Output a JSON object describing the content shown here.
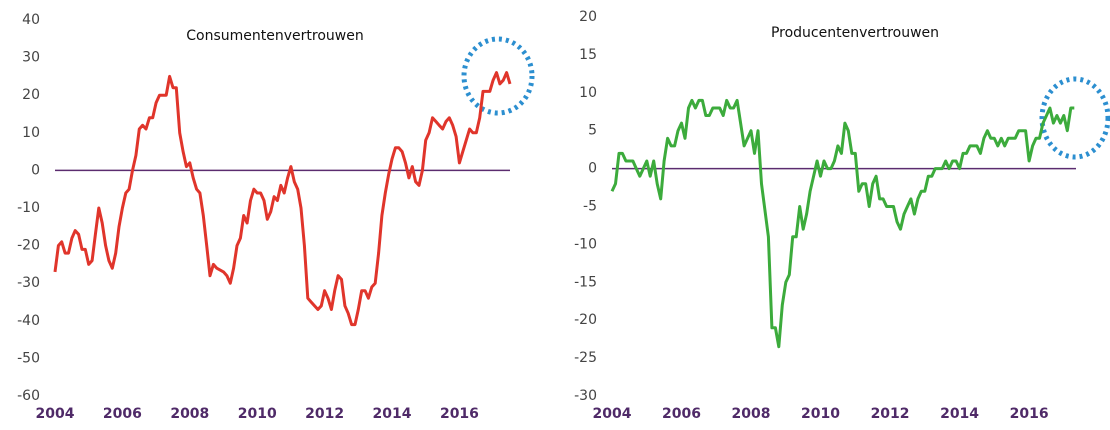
{
  "chart_data": [
    {
      "type": "line",
      "title": "Consumentenvertrouwen",
      "x": [
        2004.0,
        2004.1,
        2004.2,
        2004.3,
        2004.4,
        2004.5,
        2004.6,
        2004.7,
        2004.8,
        2004.9,
        2005.0,
        2005.1,
        2005.2,
        2005.3,
        2005.4,
        2005.5,
        2005.6,
        2005.7,
        2005.8,
        2005.9,
        2006.0,
        2006.1,
        2006.2,
        2006.3,
        2006.4,
        2006.5,
        2006.6,
        2006.7,
        2006.8,
        2006.9,
        2007.0,
        2007.1,
        2007.3,
        2007.4,
        2007.5,
        2007.6,
        2007.7,
        2007.8,
        2007.9,
        2008.0,
        2008.1,
        2008.2,
        2008.3,
        2008.4,
        2008.5,
        2008.6,
        2008.7,
        2008.8,
        2009.0,
        2009.1,
        2009.2,
        2009.3,
        2009.4,
        2009.5,
        2009.6,
        2009.7,
        2009.8,
        2009.9,
        2010.0,
        2010.1,
        2010.2,
        2010.3,
        2010.4,
        2010.5,
        2010.6,
        2010.7,
        2010.8,
        2010.9,
        2011.0,
        2011.1,
        2011.2,
        2011.3,
        2011.4,
        2011.5,
        2011.6,
        2011.7,
        2011.8,
        2011.9,
        2012.0,
        2012.1,
        2012.2,
        2012.3,
        2012.4,
        2012.5,
        2012.6,
        2012.7,
        2012.8,
        2012.9,
        2013.0,
        2013.1,
        2013.2,
        2013.3,
        2013.4,
        2013.5,
        2013.6,
        2013.7,
        2013.8,
        2013.9,
        2014.0,
        2014.1,
        2014.2,
        2014.3,
        2014.4,
        2014.5,
        2014.6,
        2014.7,
        2014.8,
        2014.9,
        2015.0,
        2015.1,
        2015.2,
        2015.3,
        2015.4,
        2015.5,
        2015.6,
        2015.7,
        2015.8,
        2015.9,
        2016.0,
        2016.1,
        2016.2,
        2016.3,
        2016.4,
        2016.5,
        2016.6,
        2016.7,
        2016.8,
        2016.9,
        2017.0,
        2017.1,
        2017.2,
        2017.3,
        2017.4,
        2017.5
      ],
      "series": [
        {
          "color": "#e0352b",
          "values": [
            -27,
            -20,
            -19,
            -22,
            -22,
            -18,
            -16,
            -17,
            -21,
            -21,
            -25,
            -24,
            -17,
            -10,
            -14,
            -20,
            -24,
            -26,
            -22,
            -15,
            -10,
            -6,
            -5,
            0,
            4,
            11,
            12,
            11,
            14,
            14,
            18,
            20,
            20,
            25,
            22,
            22,
            10,
            5,
            1,
            2,
            -2,
            -5,
            -6,
            -12,
            -20,
            -28,
            -25,
            -26,
            -27,
            -28,
            -30,
            -26,
            -20,
            -18,
            -12,
            -14,
            -8,
            -5,
            -6,
            -6,
            -8,
            -13,
            -11,
            -7,
            -8,
            -4,
            -6,
            -2,
            1,
            -3,
            -5,
            -10,
            -20,
            -34,
            -35,
            -36,
            -37,
            -36,
            -32,
            -34,
            -37,
            -32,
            -28,
            -29,
            -36,
            -38,
            -41,
            -41,
            -37,
            -32,
            -32,
            -34,
            -31,
            -30,
            -22,
            -12,
            -6,
            -1,
            3,
            6,
            6,
            5,
            2,
            -2,
            1,
            -3,
            -4,
            0,
            8,
            10,
            14,
            13,
            12,
            11,
            13,
            14,
            12,
            9,
            2,
            5,
            8,
            11,
            10,
            10,
            14,
            21,
            21,
            21,
            24,
            26,
            23,
            24,
            26,
            23
          ]
        }
      ],
      "xlim": [
        2004,
        2017.5
      ],
      "xticks": [
        2004,
        2006,
        2008,
        2010,
        2012,
        2014,
        2016
      ],
      "ylim": [
        -60,
        40
      ],
      "yticks": [
        -60,
        -50,
        -40,
        -30,
        -20,
        -10,
        0,
        10,
        20,
        30,
        40
      ]
    },
    {
      "type": "line",
      "title": "Producentenvertrouwen",
      "x": [
        2004.0,
        2004.1,
        2004.2,
        2004.3,
        2004.4,
        2004.5,
        2004.6,
        2004.7,
        2004.8,
        2004.9,
        2005.0,
        2005.1,
        2005.2,
        2005.3,
        2005.4,
        2005.5,
        2005.6,
        2005.7,
        2005.8,
        2005.9,
        2006.0,
        2006.1,
        2006.2,
        2006.3,
        2006.4,
        2006.5,
        2006.6,
        2006.7,
        2006.8,
        2006.9,
        2007.0,
        2007.1,
        2007.2,
        2007.3,
        2007.4,
        2007.5,
        2007.6,
        2007.7,
        2007.8,
        2007.9,
        2008.0,
        2008.1,
        2008.2,
        2008.3,
        2008.5,
        2008.6,
        2008.7,
        2008.8,
        2008.9,
        2009.0,
        2009.1,
        2009.2,
        2009.3,
        2009.4,
        2009.5,
        2009.6,
        2009.7,
        2009.8,
        2009.9,
        2010.0,
        2010.1,
        2010.2,
        2010.3,
        2010.4,
        2010.5,
        2010.6,
        2010.7,
        2010.8,
        2010.9,
        2011.0,
        2011.1,
        2011.2,
        2011.3,
        2011.4,
        2011.5,
        2011.6,
        2011.7,
        2011.8,
        2011.9,
        2012.0,
        2012.1,
        2012.2,
        2012.3,
        2012.4,
        2012.5,
        2012.6,
        2012.7,
        2012.8,
        2012.9,
        2013.0,
        2013.1,
        2013.2,
        2013.3,
        2013.4,
        2013.5,
        2013.6,
        2013.7,
        2013.8,
        2013.9,
        2014.0,
        2014.1,
        2014.2,
        2014.3,
        2014.4,
        2014.5,
        2014.6,
        2014.7,
        2014.8,
        2014.9,
        2015.0,
        2015.1,
        2015.2,
        2015.3,
        2015.4,
        2015.5,
        2015.6,
        2015.7,
        2015.8,
        2015.9,
        2016.0,
        2016.1,
        2016.2,
        2016.3,
        2016.4,
        2016.5,
        2016.6,
        2016.7,
        2016.8,
        2016.9,
        2017.0,
        2017.1,
        2017.2,
        2017.3
      ],
      "series": [
        {
          "color": "#3cab3c",
          "values": [
            -3,
            -2,
            2,
            2,
            1,
            1,
            1,
            0,
            -1,
            0,
            1,
            -1,
            1,
            -2,
            -4,
            1,
            4,
            3,
            3,
            5,
            6,
            4,
            8,
            9,
            8,
            9,
            9,
            7,
            7,
            8,
            8,
            8,
            7,
            9,
            8,
            8,
            9,
            6,
            3,
            4,
            5,
            2,
            5,
            -2,
            -9,
            -21,
            -21,
            -23.5,
            -18,
            -15,
            -14,
            -9,
            -9,
            -5,
            -8,
            -6,
            -3,
            -1,
            1,
            -1,
            1,
            0,
            0,
            1,
            3,
            2,
            6,
            5,
            2,
            2,
            -3,
            -2,
            -2,
            -5,
            -2,
            -1,
            -4,
            -4,
            -5,
            -5,
            -5,
            -7,
            -8,
            -6,
            -5,
            -4,
            -6,
            -4,
            -3,
            -3,
            -1,
            -1,
            0,
            0,
            0,
            1,
            0,
            1,
            1,
            0,
            2,
            2,
            3,
            3,
            3,
            2,
            4,
            5,
            4,
            4,
            3,
            4,
            3,
            4,
            4,
            4,
            5,
            5,
            5,
            1,
            3,
            4,
            4,
            6,
            7,
            8,
            6,
            7,
            6,
            7,
            5,
            8,
            8
          ]
        }
      ],
      "xlim": [
        2004,
        2017.35
      ],
      "xticks": [
        2004,
        2006,
        2008,
        2010,
        2012,
        2014,
        2016
      ],
      "ylim": [
        -30,
        20
      ],
      "yticks": [
        -30,
        -25,
        -20,
        -15,
        -10,
        -5,
        0,
        5,
        10,
        15,
        20
      ]
    }
  ]
}
